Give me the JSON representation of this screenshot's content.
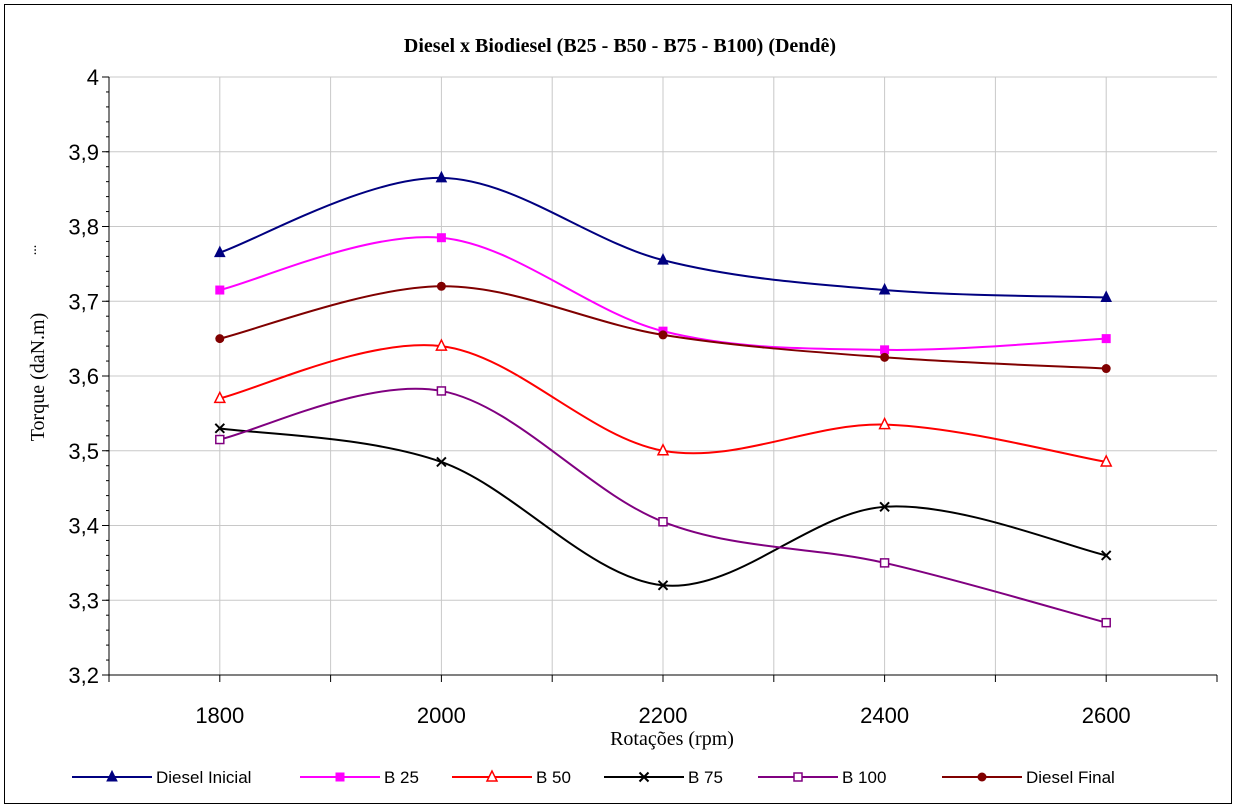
{
  "chart_data": {
    "type": "line",
    "title": "Diesel x Biodiesel (B25 - B50 - B75 - B100) (Dendê)",
    "xlabel": "Rotações (rpm)",
    "ylabel": "Torque (daN.m)",
    "y_side_marker": "...",
    "x": [
      1800,
      2000,
      2200,
      2400,
      2600
    ],
    "x_tick_labels": [
      "1800",
      "2000",
      "2200",
      "2400",
      "2600"
    ],
    "xlim": [
      1700,
      2700
    ],
    "ylim": [
      3.2,
      4.0
    ],
    "y_ticks": [
      3.2,
      3.3,
      3.4,
      3.5,
      3.6,
      3.7,
      3.8,
      3.9,
      4.0
    ],
    "y_tick_labels": [
      "3,2",
      "3,3",
      "3,4",
      "3,5",
      "3,6",
      "3,7",
      "3,8",
      "3,9",
      "4"
    ],
    "grid": true,
    "smooth": true,
    "legend_position": "bottom",
    "series": [
      {
        "name": "Diesel Inicial",
        "color": "#000080",
        "marker": "filled-triangle",
        "values": [
          3.765,
          3.865,
          3.755,
          3.715,
          3.705
        ]
      },
      {
        "name": "B 25",
        "color": "#FF00FF",
        "marker": "filled-square",
        "values": [
          3.715,
          3.785,
          3.66,
          3.635,
          3.65
        ]
      },
      {
        "name": "B 50",
        "color": "#FF0000",
        "marker": "open-triangle",
        "values": [
          3.57,
          3.64,
          3.5,
          3.535,
          3.485
        ]
      },
      {
        "name": "B 75",
        "color": "#000000",
        "marker": "x",
        "values": [
          3.53,
          3.485,
          3.32,
          3.425,
          3.36
        ]
      },
      {
        "name": "B 100",
        "color": "#800080",
        "marker": "open-square",
        "values": [
          3.515,
          3.58,
          3.405,
          3.35,
          3.27
        ]
      },
      {
        "name": "Diesel Final",
        "color": "#800000",
        "marker": "filled-circle",
        "values": [
          3.65,
          3.72,
          3.655,
          3.625,
          3.61
        ]
      }
    ]
  }
}
